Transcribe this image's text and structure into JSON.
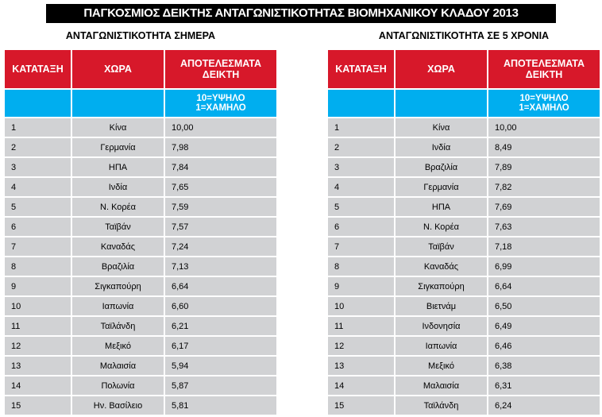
{
  "title": "ΠΑΓΚΟΣΜΙΟΣ ΔΕΙΚΤΗΣ ΑΝΤΑΓΩΝΙΣΤΙΚΟΤΗΤΑΣ ΒΙΟΜΗΧΑΝΙΚΟΥ ΚΛΑΔΟΥ 2013",
  "tables": [
    {
      "subtitle": "ΑΝΤΑΓΩΝΙΣΤΙΚΟΤΗΤΑ ΣΗΜΕΡΑ",
      "headers": [
        "ΚΑΤΑΤΑΞΗ",
        "ΧΩΡΑ",
        "ΑΠΟΤΕΛΕΣΜΑΤΑ ΔΕΙΚΤΗ"
      ],
      "scale": [
        "10=ΥΨΗΛΟ",
        "1=ΧΑΜΗΛΟ"
      ],
      "rows": [
        [
          "1",
          "Κίνα",
          "10,00"
        ],
        [
          "2",
          "Γερμανία",
          "7,98"
        ],
        [
          "3",
          "ΗΠΑ",
          "7,84"
        ],
        [
          "4",
          "Ινδία",
          "7,65"
        ],
        [
          "5",
          "Ν. Κορέα",
          "7,59"
        ],
        [
          "6",
          "Ταϊβάν",
          "7,57"
        ],
        [
          "7",
          "Καναδάς",
          "7,24"
        ],
        [
          "8",
          "Βραζιλία",
          "7,13"
        ],
        [
          "9",
          "Σιγκαπούρη",
          "6,64"
        ],
        [
          "10",
          "Ιαπωνία",
          "6,60"
        ],
        [
          "11",
          "Ταϊλάνδη",
          "6,21"
        ],
        [
          "12",
          "Μεξικό",
          "6,17"
        ],
        [
          "13",
          "Μαλαισία",
          "5,94"
        ],
        [
          "14",
          "Πολωνία",
          "5,87"
        ],
        [
          "15",
          "Ην. Βασίλειο",
          "5,81"
        ]
      ]
    },
    {
      "subtitle": "ΑΝΤΑΓΩΝΙΣΤΙΚΟΤΗΤΑ ΣΕ 5 ΧΡΟΝΙΑ",
      "headers": [
        "ΚΑΤΑΤΑΞΗ",
        "ΧΩΡΑ",
        "ΑΠΟΤΕΛΕΣΜΑΤΑ ΔΕΙΚΤΗ"
      ],
      "scale": [
        "10=ΥΨΗΛΟ",
        "1=ΧΑΜΗΛΟ"
      ],
      "rows": [
        [
          "1",
          "Κίνα",
          "10,00"
        ],
        [
          "2",
          "Ινδία",
          "8,49"
        ],
        [
          "3",
          "Βραζιλία",
          "7,89"
        ],
        [
          "4",
          "Γερμανία",
          "7,82"
        ],
        [
          "5",
          "ΗΠΑ",
          "7,69"
        ],
        [
          "6",
          "Ν. Κορέα",
          "7,63"
        ],
        [
          "7",
          "Ταϊβάν",
          "7,18"
        ],
        [
          "8",
          "Καναδάς",
          "6,99"
        ],
        [
          "9",
          "Σιγκαπούρη",
          "6,64"
        ],
        [
          "10",
          "Βιετνάμ",
          "6,50"
        ],
        [
          "11",
          "Ινδονησία",
          "6,49"
        ],
        [
          "12",
          "Ιαπωνία",
          "6,46"
        ],
        [
          "13",
          "Μεξικό",
          "6,38"
        ],
        [
          "14",
          "Μαλαισία",
          "6,31"
        ],
        [
          "15",
          "Ταϊλάνδη",
          "6,24"
        ]
      ]
    }
  ]
}
